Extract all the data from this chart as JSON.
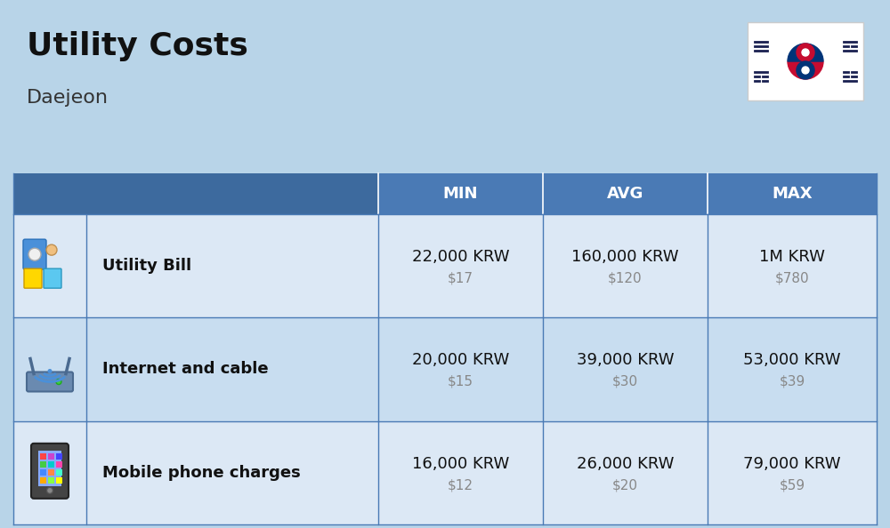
{
  "title": "Utility Costs",
  "subtitle": "Daejeon",
  "bg_color": "#b8d4e8",
  "header_bg_color": "#4a7ab5",
  "header_text_color": "#ffffff",
  "row_bg_color_odd": "#dce8f5",
  "row_bg_color_even": "#c8ddf0",
  "headers": [
    "MIN",
    "AVG",
    "MAX"
  ],
  "rows": [
    {
      "icon": "utility",
      "label": "Utility Bill",
      "min_krw": "22,000 KRW",
      "min_usd": "$17",
      "avg_krw": "160,000 KRW",
      "avg_usd": "$120",
      "max_krw": "1M KRW",
      "max_usd": "$780"
    },
    {
      "icon": "internet",
      "label": "Internet and cable",
      "min_krw": "20,000 KRW",
      "min_usd": "$15",
      "avg_krw": "39,000 KRW",
      "avg_usd": "$30",
      "max_krw": "53,000 KRW",
      "max_usd": "$39"
    },
    {
      "icon": "mobile",
      "label": "Mobile phone charges",
      "min_krw": "16,000 KRW",
      "min_usd": "$12",
      "avg_krw": "26,000 KRW",
      "avg_usd": "$20",
      "max_krw": "79,000 KRW",
      "max_usd": "$59"
    }
  ],
  "title_fontsize": 26,
  "subtitle_fontsize": 16,
  "header_fontsize": 13,
  "label_fontsize": 13,
  "value_fontsize": 13,
  "usd_fontsize": 11,
  "usd_color": "#888888",
  "label_color": "#111111",
  "value_color": "#111111",
  "separator_color": "#4a7ab5"
}
